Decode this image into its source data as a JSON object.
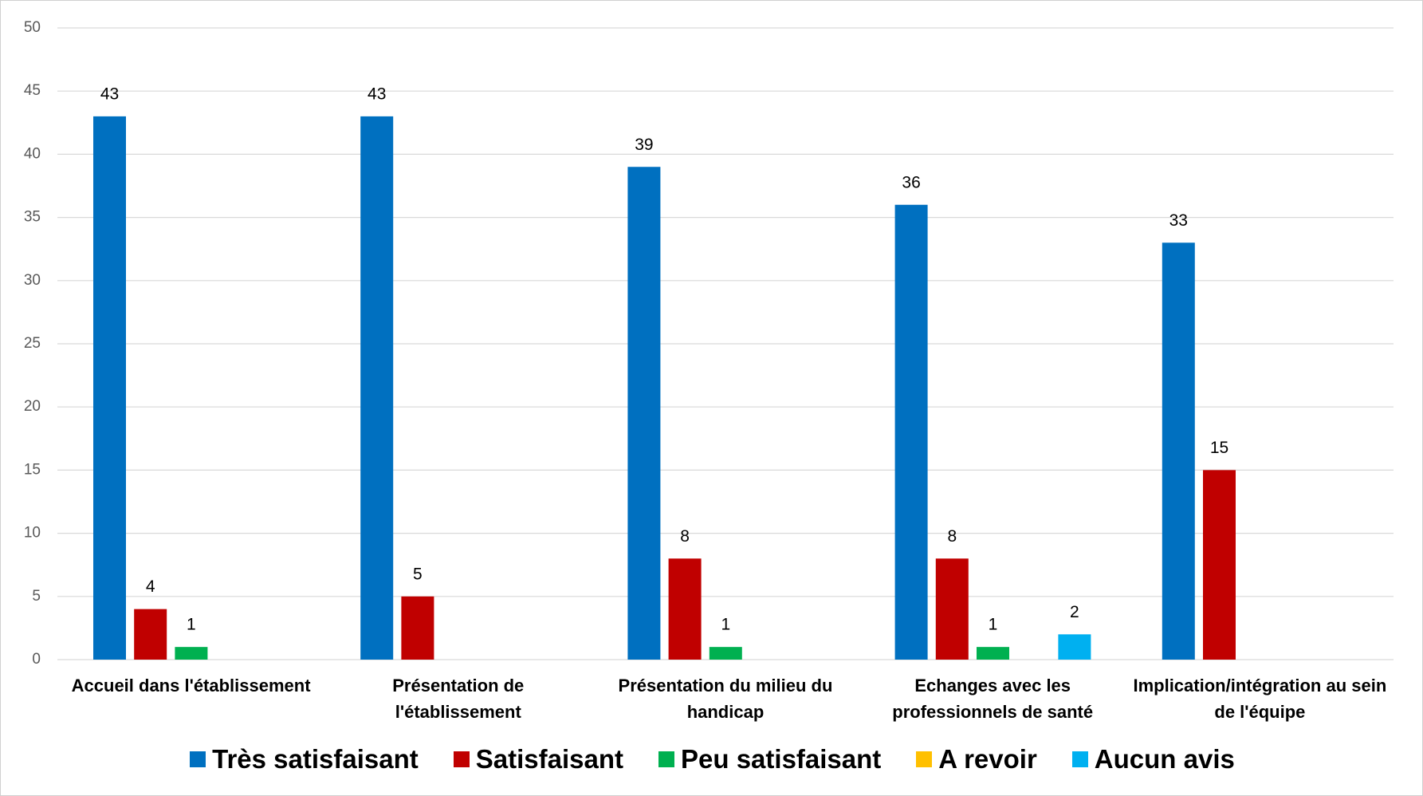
{
  "chart_data": {
    "type": "bar",
    "categories": [
      "Accueil dans l'établissement",
      "Présentation de l'établissement",
      "Présentation du milieu du handicap",
      "Echanges avec les professionnels de santé",
      "Implication/intégration au sein de l'équipe"
    ],
    "series": [
      {
        "name": "Très satisfaisant",
        "color": "#0070c0",
        "values": [
          43,
          43,
          39,
          36,
          33
        ]
      },
      {
        "name": "Satisfaisant",
        "color": "#c00000",
        "values": [
          4,
          5,
          8,
          8,
          15
        ]
      },
      {
        "name": "Peu satisfaisant",
        "color": "#00b050",
        "values": [
          1,
          null,
          1,
          1,
          null
        ]
      },
      {
        "name": "A revoir",
        "color": "#ffc000",
        "values": [
          null,
          null,
          null,
          null,
          null
        ]
      },
      {
        "name": "Aucun avis",
        "color": "#00b0f0",
        "values": [
          null,
          null,
          null,
          2,
          null
        ]
      }
    ],
    "ylim": [
      0,
      50
    ],
    "yticks": [
      0,
      5,
      10,
      15,
      20,
      25,
      30,
      35,
      40,
      45,
      50
    ],
    "grid": true,
    "legend": "bottom"
  }
}
